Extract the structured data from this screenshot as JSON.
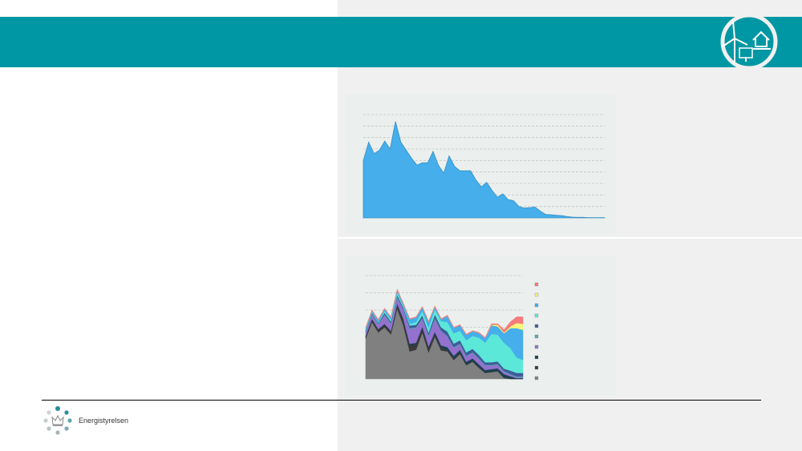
{
  "header": {
    "color": "#0097a4",
    "logo_icon": "wind-solar-house-icon"
  },
  "footer": {
    "brand_name": "Energistyrelsen",
    "brand_icon": "crown-dots-icon"
  },
  "chart_data": [
    {
      "type": "area",
      "grid": true,
      "ylim": [
        0,
        9
      ],
      "color": "#45aeeb",
      "values": [
        5.0,
        6.6,
        5.6,
        5.9,
        6.7,
        6.0,
        8.4,
        6.6,
        5.9,
        5.2,
        4.6,
        4.8,
        4.8,
        5.8,
        4.6,
        3.9,
        5.4,
        4.5,
        4.1,
        4.1,
        4.1,
        3.3,
        2.7,
        3.1,
        2.4,
        1.8,
        2.1,
        1.6,
        1.5,
        1.0,
        0.85,
        0.9,
        0.95,
        0.6,
        0.3,
        0.28,
        0.23,
        0.2,
        0.12,
        0.07,
        0.05,
        0.05,
        0.03,
        0.02,
        0.02,
        0.02
      ]
    },
    {
      "type": "area",
      "stacked": true,
      "grid": true,
      "ylim": [
        0,
        6
      ],
      "legend_placement": "right",
      "series": [
        {
          "color": "#808080",
          "values": [
            2.35,
            3.3,
            2.7,
            3.0,
            2.6,
            4.1,
            3.1,
            1.6,
            1.7,
            2.7,
            1.55,
            2.45,
            1.65,
            1.6,
            1.1,
            1.45,
            0.8,
            1.0,
            0.65,
            0.35,
            0.4,
            0.45,
            0.06,
            0,
            0,
            0
          ]
        },
        {
          "color": "#3a3a3a",
          "values": [
            0.1,
            0.15,
            0.15,
            0.15,
            0.15,
            0.2,
            0.3,
            0.35,
            0.3,
            0.25,
            0.25,
            0.2,
            0.15,
            0.1,
            0.1,
            0.1,
            0.05,
            0.05,
            0.05,
            0.02,
            0.02,
            0.02,
            0.02,
            0.01,
            0,
            0
          ]
        },
        {
          "color": "#1b4150",
          "values": [
            0.05,
            0.05,
            0.05,
            0.05,
            0.05,
            0.08,
            0.1,
            0.1,
            0.1,
            0.1,
            0.1,
            0.1,
            0.15,
            0.15,
            0.15,
            0.15,
            0.15,
            0.15,
            0.15,
            0.15,
            0.15,
            0.15,
            0.2,
            0.15,
            0.05,
            0.05
          ]
        },
        {
          "color": "#9471cf",
          "values": [
            0.2,
            0.25,
            0.25,
            0.5,
            0.4,
            0.35,
            0.5,
            0.85,
            0.85,
            0.45,
            0.6,
            0.75,
            0.8,
            0.6,
            0.45,
            0.3,
            0.3,
            0.3,
            0.3,
            0.25,
            0.2,
            0.2,
            0.12,
            0.08,
            0.05,
            0.05
          ]
        },
        {
          "color": "#5aa6ad",
          "values": [
            0.05,
            0.05,
            0.05,
            0.05,
            0.05,
            0.05,
            0.05,
            0.05,
            0.05,
            0.05,
            0.05,
            0.05,
            0.05,
            0.05,
            0.05,
            0.05,
            0.05,
            0.05,
            0.05,
            0.05,
            0.05,
            0.05,
            0.05,
            0.05,
            0.05,
            0.05
          ]
        },
        {
          "color": "#3f5c9a",
          "values": [
            0.05,
            0.05,
            0.05,
            0.1,
            0.1,
            0.1,
            0.1,
            0.15,
            0.15,
            0.15,
            0.15,
            0.2,
            0.2,
            0.25,
            0.2,
            0.2,
            0.2,
            0.2,
            0.2,
            0.15,
            0.15,
            0.15,
            0.15,
            0.2,
            0.2,
            0.2
          ]
        },
        {
          "color": "#5ce8d8",
          "values": [
            0.05,
            0.05,
            0.05,
            0.1,
            0.1,
            0.15,
            0.1,
            0.1,
            0.15,
            0.25,
            0.3,
            0.3,
            0.35,
            0.55,
            0.6,
            0.55,
            0.7,
            0.75,
            1.0,
            1.15,
            1.65,
            1.55,
            1.5,
            1.3,
            0.9,
            0.75
          ]
        },
        {
          "color": "#45aeeb",
          "values": [
            0.12,
            0.07,
            0.12,
            0.12,
            0.12,
            0.14,
            0.1,
            0.27,
            0.27,
            0.22,
            0.32,
            0.15,
            0.12,
            0.37,
            0.32,
            0.32,
            0.32,
            0.27,
            0.27,
            0.25,
            0.5,
            0.48,
            0.55,
            1.16,
            1.7,
            1.75
          ]
        },
        {
          "color": "#f5f57a",
          "values": [
            0,
            0,
            0,
            0,
            0,
            0,
            0,
            0,
            0,
            0,
            0,
            0,
            0,
            0,
            0,
            0,
            0,
            0,
            0,
            0,
            0.03,
            0.1,
            0.05,
            0.1,
            0.3,
            0.35
          ]
        },
        {
          "color": "#f47c7c",
          "values": [
            0.03,
            0.03,
            0.03,
            0.03,
            0.03,
            0.03,
            0.03,
            0.03,
            0.03,
            0.03,
            0.03,
            0.03,
            0.03,
            0.03,
            0.03,
            0.03,
            0.03,
            0.03,
            0.03,
            0.03,
            0.05,
            0.05,
            0.15,
            0.25,
            0.35,
            0.4
          ]
        }
      ]
    }
  ]
}
